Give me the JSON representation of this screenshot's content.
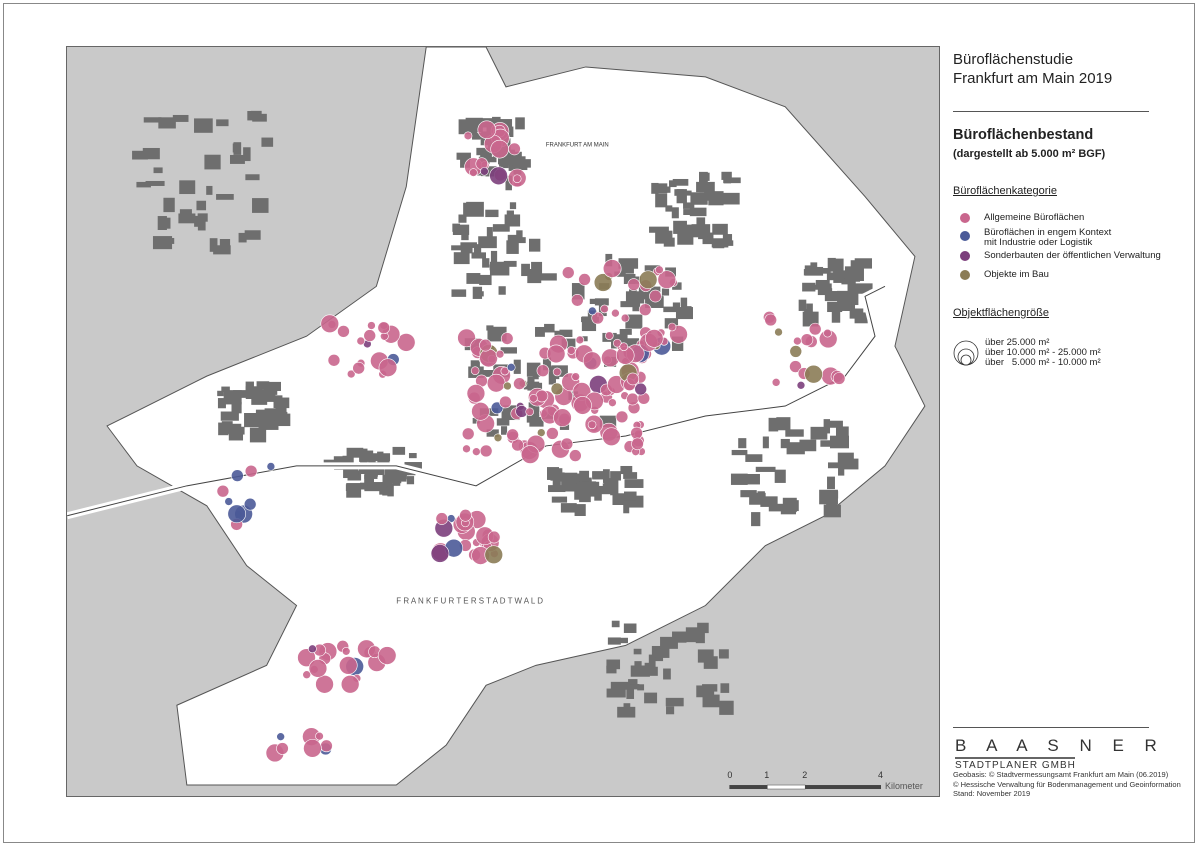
{
  "title": {
    "line1": "Büroflächenstudie",
    "line2": "Frankfurt am Main 2019"
  },
  "subtitle": {
    "heading": "Büroflächenbestand",
    "note": "(dargestellt ab 5.000 m² BGF)"
  },
  "category_legend": {
    "heading": "Büroflächenkategorie",
    "items": [
      {
        "label": "Allgemeine Büroflächen",
        "color": "#c9668d"
      },
      {
        "label": "Büroflächen in engem Kontext mit Industrie oder Logistik",
        "color": "#4b5a98"
      },
      {
        "label": "Sonderbauten der öffentlichen Verwaltung",
        "color": "#7c3f7c"
      },
      {
        "label": "Objekte im Bau",
        "color": "#8b7c56"
      }
    ]
  },
  "size_legend": {
    "heading": "Objektflächengröße",
    "items": [
      "über 25.000 m²",
      "über 10.000 m² - 25.000 m²",
      "über   5.000 m² - 10.000 m²"
    ]
  },
  "map": {
    "labels": {
      "stadtwald": "F R A N K F U R T E R   S T A D T W A L D",
      "city": "FRANKFURT AM MAIN"
    },
    "scale_bar": {
      "ticks": [
        "0",
        "1",
        "2",
        "4"
      ],
      "unit": "Kilometer"
    },
    "colors": {
      "background": "#c9c9c9",
      "city_area": "#ffffff",
      "built_up": "#6e6e6e",
      "river": "#ffffff"
    }
  },
  "branding": {
    "name": "B A A S N E R",
    "subtitle": "STADTPLANER GMBH"
  },
  "credits": {
    "line1": "Geobasis: © Stadtvermessungsamt Frankfurt am Main (06.2019)",
    "line2": "© Hessische Verwaltung für Bodenmanagement und Geoinformation",
    "line3": "Stand: November 2019"
  }
}
